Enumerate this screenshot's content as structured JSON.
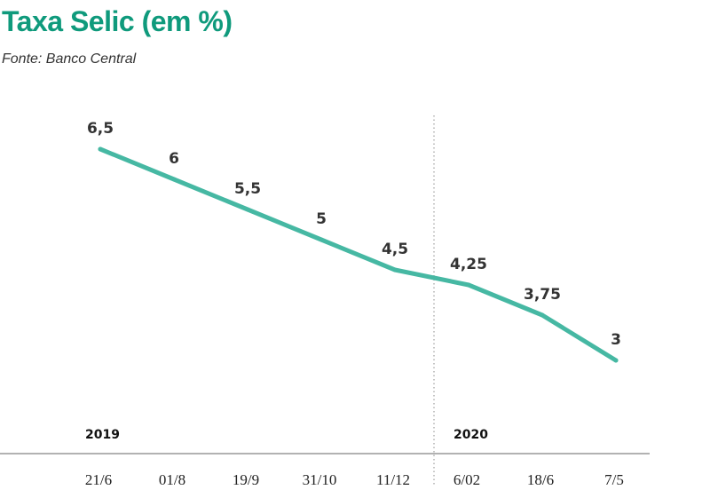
{
  "header": {
    "title": "Taxa Selic (em %)",
    "source": "Fonte: Banco Central"
  },
  "colors": {
    "title": "#0f9a7c",
    "line": "#46b8a3",
    "labels": "#333333",
    "axis": "#999999"
  },
  "chart_data": {
    "type": "line",
    "title": "Taxa Selic (em %)",
    "subtitle": "Fonte: Banco Central",
    "xlabel": "",
    "ylabel": "",
    "categories": [
      "21/6",
      "01/8",
      "19/9",
      "31/10",
      "11/12",
      "6/02",
      "18/6",
      "7/5"
    ],
    "series": [
      {
        "name": "Taxa Selic",
        "values": [
          6.5,
          6,
          5.5,
          5,
          4.5,
          4.25,
          3.75,
          3
        ],
        "labels": [
          "6,5",
          "6",
          "5,5",
          "5",
          "4,5",
          "4,25",
          "3,75",
          "3"
        ]
      }
    ],
    "year_labels": [
      {
        "label": "2019",
        "start_index": 0
      },
      {
        "label": "2020",
        "start_index": 5
      }
    ],
    "ylim": [
      2.5,
      7
    ],
    "grid": false,
    "legend": "none"
  }
}
